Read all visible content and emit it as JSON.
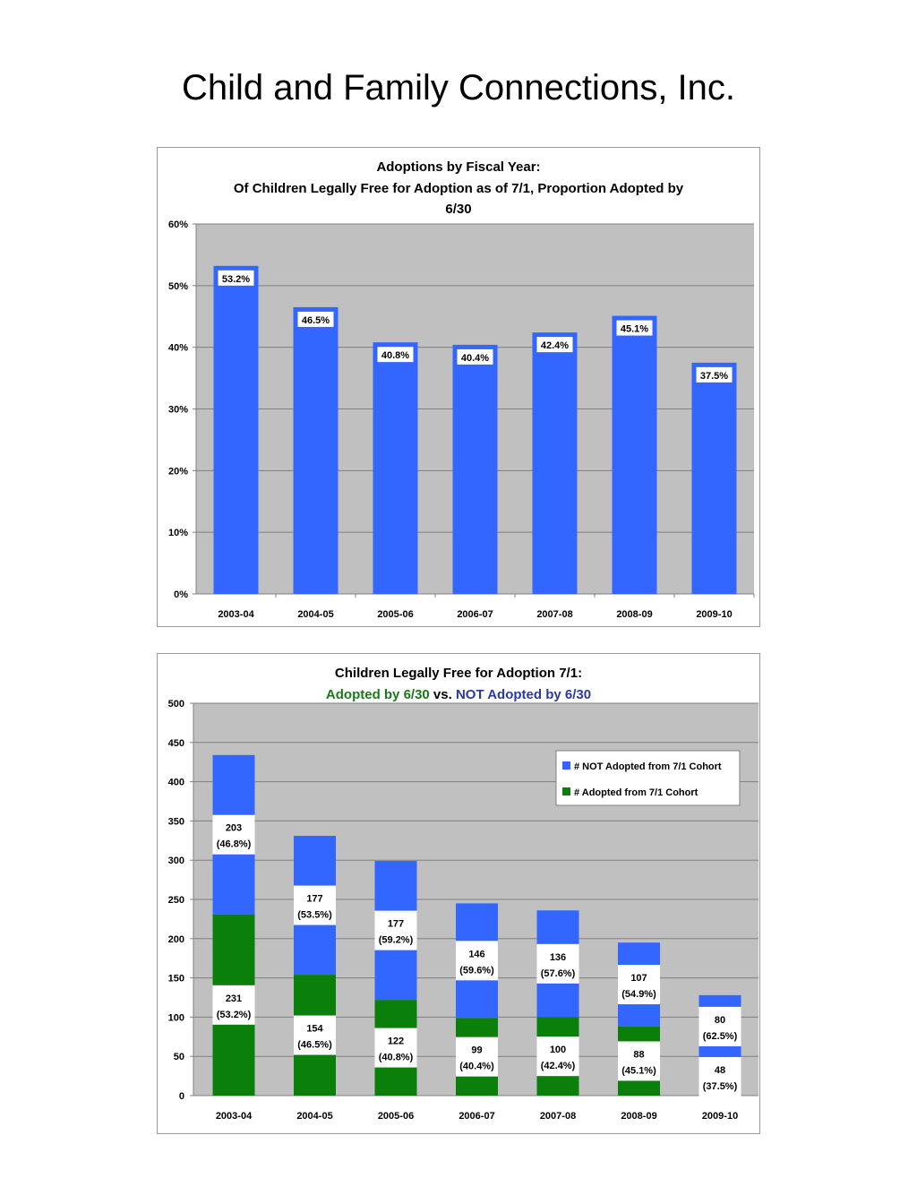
{
  "page_title": "Child and Family Connections, Inc.",
  "chart_data": [
    {
      "type": "bar",
      "title_line1": "Adoptions by Fiscal Year:",
      "title_line2": "Of Children Legally Free for Adoption as of 7/1, Proportion Adopted by",
      "title_line3": "6/30",
      "categories": [
        "2003-04",
        "2004-05",
        "2005-06",
        "2006-07",
        "2007-08",
        "2008-09",
        "2009-10"
      ],
      "values": [
        53.2,
        46.5,
        40.8,
        40.4,
        42.4,
        45.1,
        37.5
      ],
      "data_labels": [
        "53.2%",
        "46.5%",
        "40.8%",
        "40.4%",
        "42.4%",
        "45.1%",
        "37.5%"
      ],
      "y_ticks": [
        "0%",
        "10%",
        "20%",
        "30%",
        "40%",
        "50%",
        "60%"
      ],
      "ylim": [
        0,
        60
      ],
      "grid": true,
      "bar_color": "#3366ff",
      "plot_bg": "#c0c0c0"
    },
    {
      "type": "bar",
      "stacked": true,
      "title_line1": "Children Legally Free for Adoption 7/1:",
      "title_adopted": "Adopted by 6/30",
      "title_vs": " vs. ",
      "title_not": "NOT Adopted by 6/30",
      "categories": [
        "2003-04",
        "2004-05",
        "2005-06",
        "2006-07",
        "2007-08",
        "2008-09",
        "2009-10"
      ],
      "series": [
        {
          "name": "# Adopted from 7/1 Cohort",
          "values": [
            231,
            154,
            122,
            99,
            100,
            88,
            48
          ],
          "color": "#0a7f0a",
          "labels": [
            [
              "231",
              "(53.2%)"
            ],
            [
              "154",
              "(46.5%)"
            ],
            [
              "122",
              "(40.8%)"
            ],
            [
              "99",
              "(40.4%)"
            ],
            [
              "100",
              "(42.4%)"
            ],
            [
              "88",
              "(45.1%)"
            ],
            [
              "48",
              "(37.5%)"
            ]
          ]
        },
        {
          "name": "# NOT Adopted from 7/1 Cohort",
          "values": [
            203,
            177,
            177,
            146,
            136,
            107,
            80
          ],
          "color": "#3366ff",
          "labels": [
            [
              "203",
              "(46.8%)"
            ],
            [
              "177",
              "(53.5%)"
            ],
            [
              "177",
              "(59.2%)"
            ],
            [
              "146",
              "(59.6%)"
            ],
            [
              "136",
              "(57.6%)"
            ],
            [
              "107",
              "(54.9%)"
            ],
            [
              "80",
              "(62.5%)"
            ]
          ]
        }
      ],
      "y_ticks": [
        "0",
        "50",
        "100",
        "150",
        "200",
        "250",
        "300",
        "350",
        "400",
        "450",
        "500"
      ],
      "ylim": [
        0,
        500
      ],
      "grid": true,
      "legend": "top-right",
      "plot_bg": "#c0c0c0"
    }
  ]
}
